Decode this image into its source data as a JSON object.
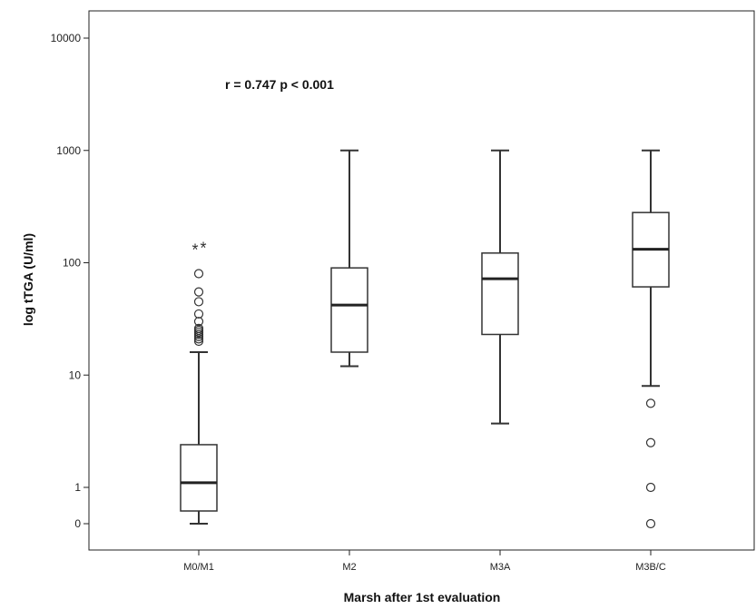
{
  "chart_data": {
    "type": "box",
    "xlabel": "Marsh after 1st evaluation",
    "ylabel": "log tTGA (U/ml)",
    "annotation": "r = 0.747  p < 0.001",
    "y_scale": "log",
    "y_ticks": [
      {
        "label": "0",
        "value": 0
      },
      {
        "label": "1",
        "value": 1
      },
      {
        "label": "10",
        "value": 10
      },
      {
        "label": "100",
        "value": 100
      },
      {
        "label": "1000",
        "value": 1000
      },
      {
        "label": "10000",
        "value": 10000
      }
    ],
    "grid": false,
    "categories": [
      "M0/M1",
      "M2",
      "M3A",
      "M3B/C"
    ],
    "boxes": [
      {
        "category": "M0/M1",
        "whisker_low": 0,
        "q1": 0.35,
        "median": 1.1,
        "q3": 2.4,
        "whisker_high": 16,
        "outliers": [
          20,
          21,
          22,
          23,
          24,
          25,
          26,
          30,
          35,
          45,
          55,
          80
        ],
        "extremes": [
          140,
          145
        ]
      },
      {
        "category": "M2",
        "whisker_low": 12,
        "q1": 16,
        "median": 42,
        "q3": 90,
        "whisker_high": 1000,
        "outliers": [],
        "extremes": []
      },
      {
        "category": "M3A",
        "whisker_low": 3.7,
        "q1": 23,
        "median": 72,
        "q3": 122,
        "whisker_high": 1000,
        "outliers": [],
        "extremes": []
      },
      {
        "category": "M3B/C",
        "whisker_low": 8,
        "q1": 61,
        "median": 132,
        "q3": 280,
        "whisker_high": 1000,
        "outliers": [
          0,
          1,
          2.5,
          5.6
        ],
        "extremes": []
      }
    ],
    "outlier_marker": "○",
    "extreme_marker": "*"
  }
}
